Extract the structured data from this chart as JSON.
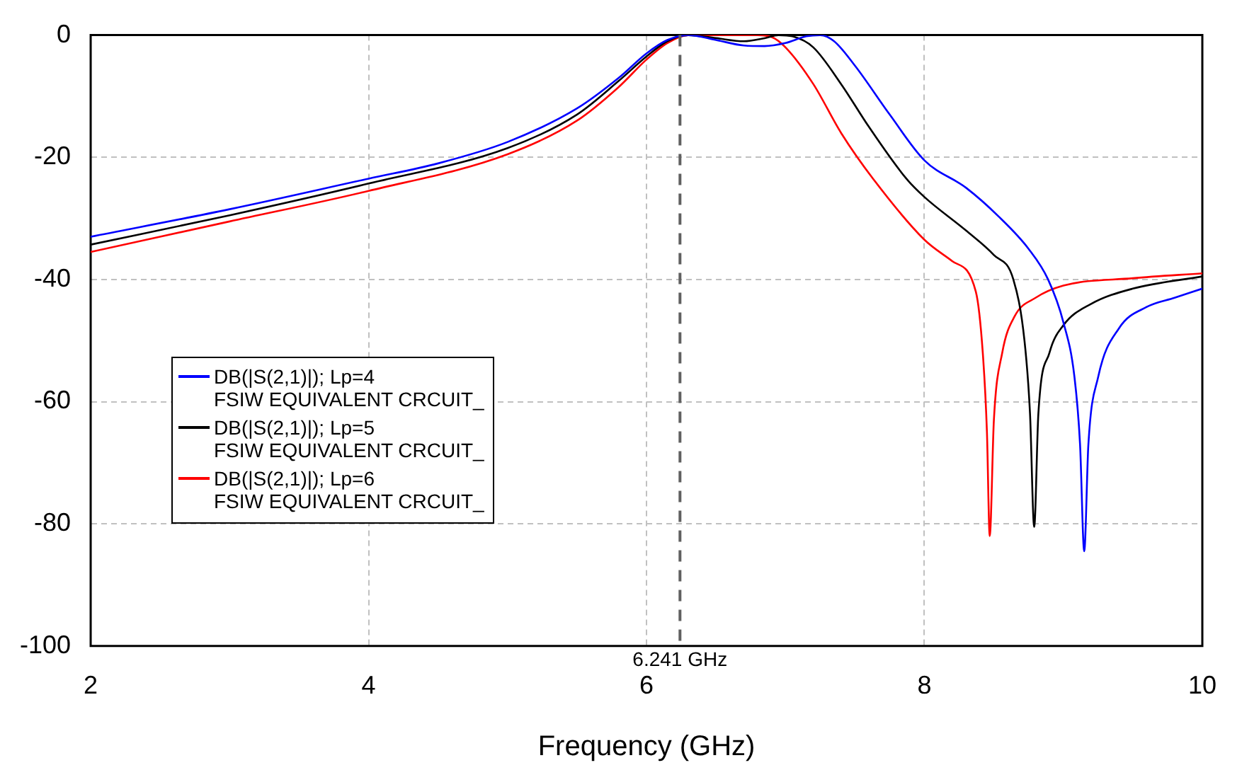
{
  "chart_data": {
    "type": "line",
    "xlabel": "Frequency (GHz)",
    "xlim": [
      2,
      10
    ],
    "xticks": [
      2,
      4,
      6,
      8,
      10
    ],
    "ylim": [
      -100,
      0
    ],
    "yticks": [
      -100,
      -80,
      -60,
      -40,
      -20,
      0
    ],
    "grid": true,
    "legend": "left",
    "marker": "none",
    "line_style": "solid",
    "ref_lines": [
      {
        "axis": "x",
        "value": 6.241,
        "label": "6.241 GHz",
        "color": "#606060",
        "line_style": "dashed"
      }
    ],
    "series": [
      {
        "name": "DB(|S(2,1)|); Lp=4\nFSIW EQUIVALENT CRCUIT_",
        "color": "#0000ff",
        "x": [
          2,
          3,
          4,
          4.5,
          5,
          5.5,
          5.8,
          6,
          6.15,
          6.3,
          6.5,
          6.7,
          6.85,
          7,
          7.15,
          7.25,
          7.35,
          7.5,
          7.75,
          8,
          8.3,
          8.53,
          8.75,
          8.89,
          9,
          9.08,
          9.12,
          9.15,
          9.18,
          9.25,
          9.4,
          9.6,
          9.8,
          10
        ],
        "values": [
          -33,
          -28.5,
          -23.5,
          -21,
          -17.5,
          -12,
          -7,
          -3,
          -0.8,
          0,
          -0.8,
          -1.7,
          -1.8,
          -1.3,
          -0.2,
          0,
          -1,
          -5,
          -13,
          -20.5,
          -25,
          -29.6,
          -35,
          -40,
          -47,
          -56,
          -67,
          -84.5,
          -67,
          -56,
          -48,
          -44.5,
          -43,
          -41.5
        ]
      },
      {
        "name": "DB(|S(2,1)|); Lp=5\nFSIW EQUIVALENT CRCUIT_",
        "color": "#000000",
        "x": [
          2,
          3,
          4,
          5,
          5.5,
          5.8,
          6,
          6.15,
          6.3,
          6.5,
          6.7,
          6.85,
          6.95,
          7.05,
          7.2,
          7.4,
          7.6,
          7.87,
          8,
          8.3,
          8.5,
          8.64,
          8.72,
          8.76,
          8.79,
          8.82,
          8.9,
          9,
          9.2,
          9.5,
          10
        ],
        "values": [
          -34.3,
          -29.5,
          -24.3,
          -18.5,
          -13,
          -7.5,
          -3.5,
          -1,
          0,
          -0.5,
          -1,
          -0.5,
          0,
          -0.2,
          -2,
          -8,
          -15,
          -23.5,
          -26.5,
          -32,
          -36,
          -40,
          -50,
          -62,
          -80.5,
          -62,
          -52,
          -47.5,
          -44,
          -41.5,
          -39.5
        ]
      },
      {
        "name": "DB(|S(2,1)|); Lp=6\nFSIW EQUIVALENT CRCUIT_",
        "color": "#ff0000",
        "x": [
          2,
          3,
          4,
          5,
          5.5,
          5.8,
          6,
          6.15,
          6.3,
          6.5,
          6.8,
          6.9,
          7,
          7.2,
          7.4,
          7.63,
          8,
          8.2,
          8.37,
          8.42,
          8.45,
          8.47,
          8.5,
          8.56,
          8.65,
          8.8,
          9,
          9.5,
          10
        ],
        "values": [
          -35.5,
          -30.5,
          -25.5,
          -19.5,
          -14,
          -8.5,
          -4,
          -1.3,
          0,
          0,
          0,
          -0.3,
          -2,
          -8,
          -16,
          -23.5,
          -33.5,
          -37,
          -42,
          -52,
          -65,
          -82,
          -63,
          -52,
          -46,
          -43,
          -41,
          -39.8,
          -39
        ]
      }
    ]
  }
}
